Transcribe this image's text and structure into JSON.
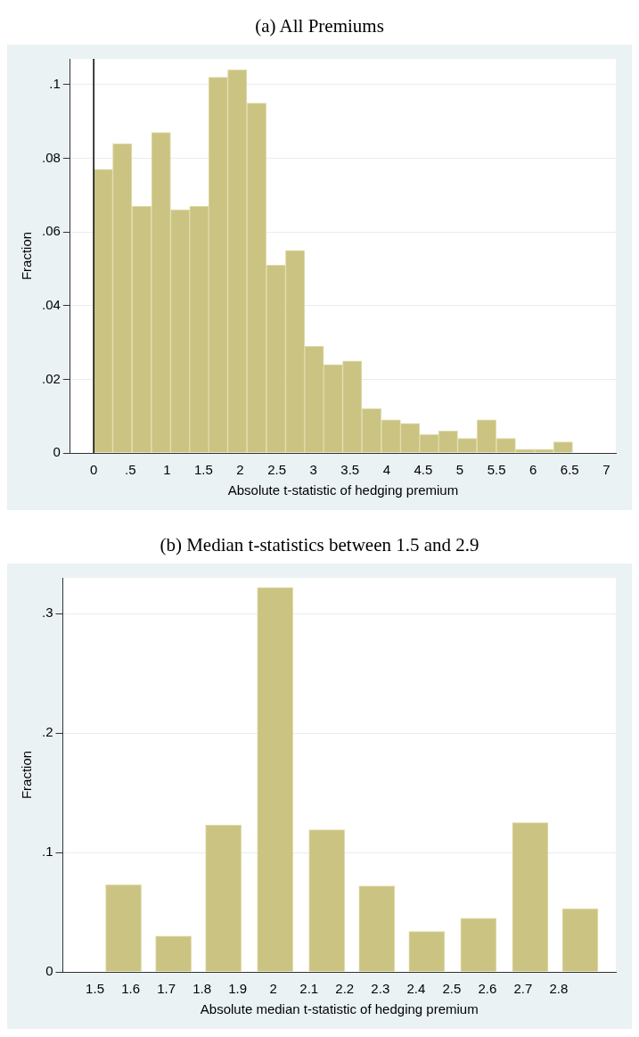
{
  "chart_data": [
    {
      "type": "histogram",
      "title": "(a)  All Premiums",
      "xlabel": "Absolute t-statistic of hedging premium",
      "ylabel": "Fraction",
      "color": "#cbc382",
      "bins": [
        0,
        0.26,
        0.52,
        0.79,
        1.05,
        1.31,
        1.57,
        1.83,
        2.09,
        2.36,
        2.62,
        2.88,
        3.14,
        3.4,
        3.66,
        3.93,
        4.19,
        4.45,
        4.71,
        4.97,
        5.23,
        5.5,
        5.76,
        6.02,
        6.28,
        6.54
      ],
      "values": [
        0.077,
        0.084,
        0.067,
        0.087,
        0.066,
        0.067,
        0.102,
        0.104,
        0.095,
        0.051,
        0.055,
        0.029,
        0.024,
        0.025,
        0.012,
        0.009,
        0.008,
        0.005,
        0.006,
        0.004,
        0.009,
        0.004,
        0.001,
        0.001,
        0.003
      ],
      "xlim": [
        -0.32,
        7.13
      ],
      "ylim": [
        0,
        0.107
      ],
      "xticks": [
        0,
        {
          "value": 0.5,
          "label": ".5"
        },
        1,
        {
          "value": 1.5,
          "label": "1.5"
        },
        2,
        {
          "value": 2.5,
          "label": "2.5"
        },
        3,
        {
          "value": 3.5,
          "label": "3.5"
        },
        4,
        {
          "value": 4.5,
          "label": "4.5"
        },
        5,
        {
          "value": 5.5,
          "label": "5.5"
        },
        6,
        {
          "value": 6.5,
          "label": "6.5"
        },
        7
      ],
      "yticks": [
        0,
        {
          "value": 0.02,
          "label": ".02"
        },
        {
          "value": 0.04,
          "label": ".04"
        },
        {
          "value": 0.06,
          "label": ".06"
        },
        {
          "value": 0.08,
          "label": ".08"
        },
        {
          "value": 0.1,
          "label": ".1"
        }
      ],
      "ref_lines": [
        {
          "axis": "x",
          "value": 0,
          "color": "#000000"
        }
      ],
      "grid": "y"
    },
    {
      "type": "histogram",
      "title": "(b)  Median t-statistics between 1.5 and 2.9",
      "xlabel": "Absolute median t-statistic of hedging premium",
      "ylabel": "Fraction",
      "color": "#cbc382",
      "bins": [
        1.51,
        1.65,
        1.79,
        1.93,
        2.08,
        2.22,
        2.36,
        2.5,
        2.65,
        2.79,
        2.93
      ],
      "values": [
        0.073,
        0.03,
        0.123,
        0.322,
        0.119,
        0.072,
        0.034,
        0.045,
        0.125,
        0.053
      ],
      "xlim": [
        1.41,
        2.96
      ],
      "ylim": [
        0,
        0.33
      ],
      "xticks": [
        1.5,
        1.6,
        1.7,
        1.8,
        1.9,
        2,
        2.1,
        2.2,
        2.3,
        2.4,
        2.5,
        2.6,
        2.7,
        2.8
      ],
      "yticks": [
        0,
        {
          "value": 0.1,
          "label": ".1"
        },
        {
          "value": 0.2,
          "label": ".2"
        },
        {
          "value": 0.3,
          "label": ".3"
        }
      ],
      "grid": "y"
    }
  ]
}
